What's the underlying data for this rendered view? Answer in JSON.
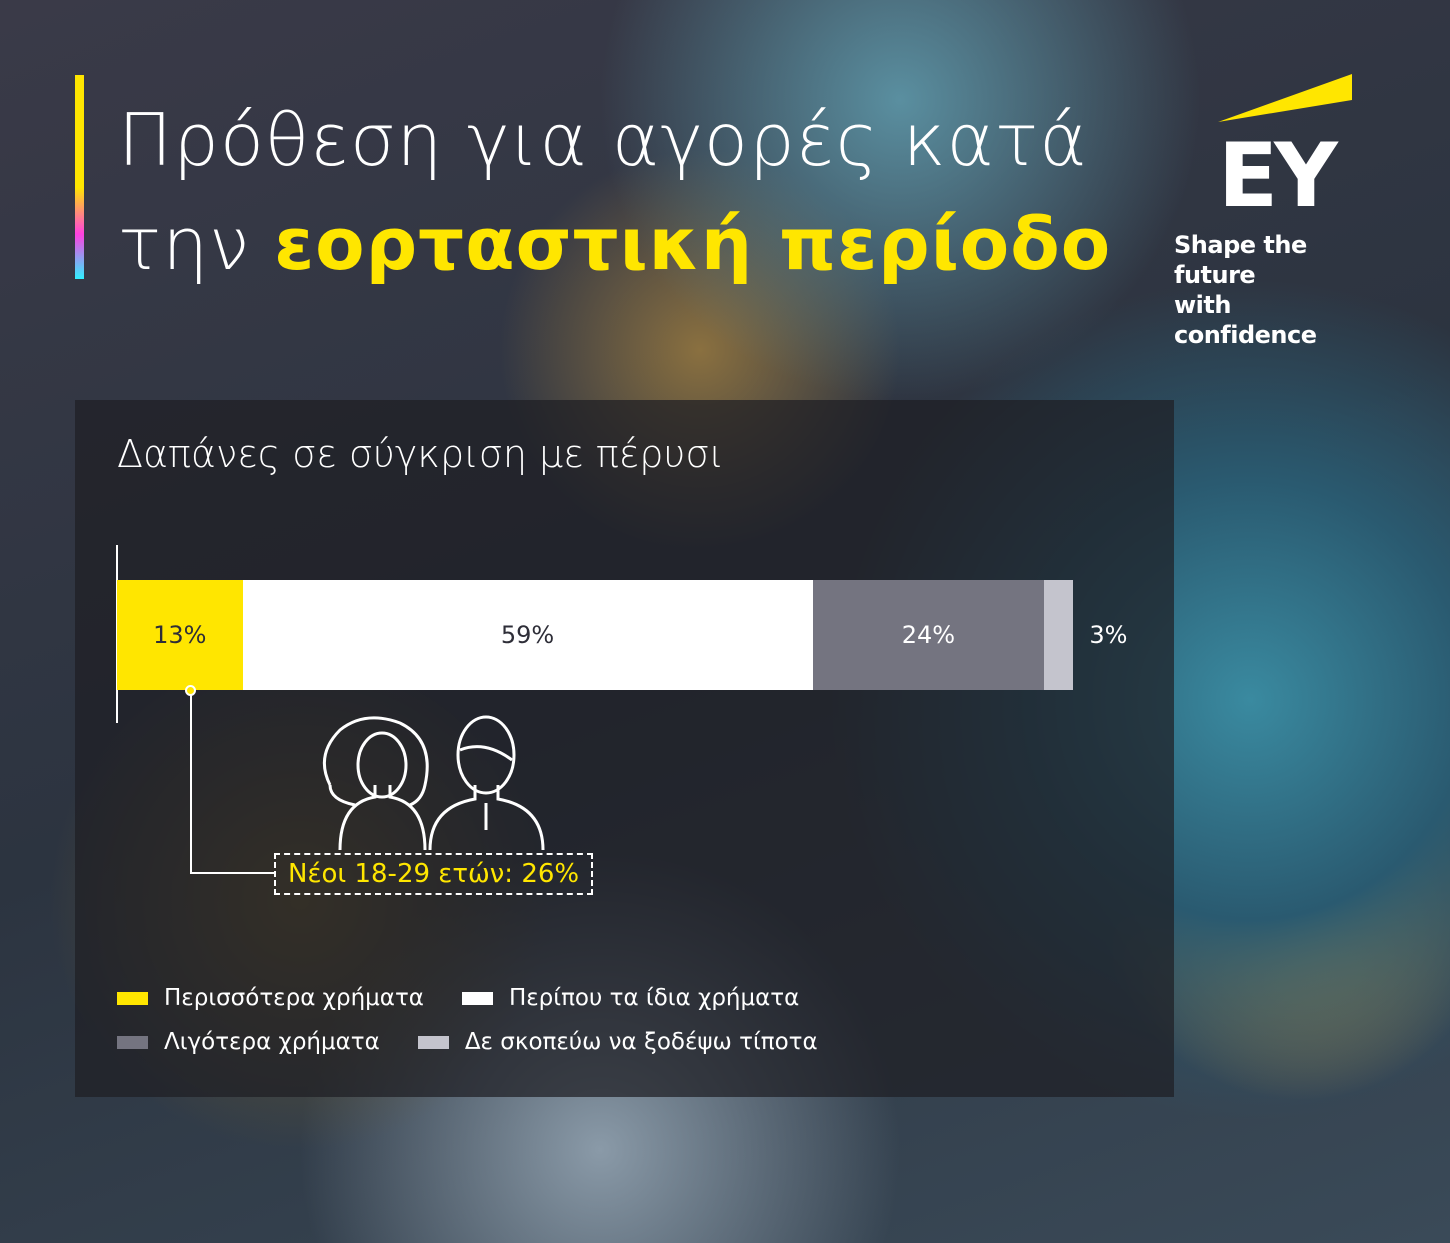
{
  "header": {
    "title_line1": "Πρόθεση για αγορές κατά",
    "title_line2_plain": "την",
    "title_line2_highlight": "εορταστική περίοδο"
  },
  "logo": {
    "brand": "EY",
    "tagline_line1": "Shape the future",
    "tagline_line2": "with confidence"
  },
  "colors": {
    "accent": "#ffe600",
    "background": "#2c3440"
  },
  "chart_data": {
    "type": "bar",
    "orientation": "horizontal-stacked",
    "title": "Δαπάνες σε σύγκριση με πέρυσι",
    "categories": [
      ""
    ],
    "series": [
      {
        "name": "Περισσότερα χρήματα",
        "value": 13,
        "label": "13%",
        "color": "#ffe600",
        "text_color": "#2e2e38"
      },
      {
        "name": "Περίπου τα ίδια χρήματα",
        "value": 59,
        "label": "59%",
        "color": "#ffffff",
        "text_color": "#2e2e38"
      },
      {
        "name": "Λιγότερα χρήματα",
        "value": 24,
        "label": "24%",
        "color": "#747480",
        "text_color": "#ffffff"
      },
      {
        "name": "Δε σκοπεύω να ξοδέψω τίποτα",
        "value": 3,
        "label": "3%",
        "color": "#c4c4cd",
        "text_color": "#ffffff"
      }
    ],
    "xlim": [
      0,
      100
    ],
    "annotation": {
      "text": "Νέοι 18-29 ετών: 26%",
      "series": "Περισσότερα χρήματα",
      "value": 26
    },
    "legend_position": "bottom"
  },
  "icons": [
    "woman-icon",
    "man-icon"
  ]
}
